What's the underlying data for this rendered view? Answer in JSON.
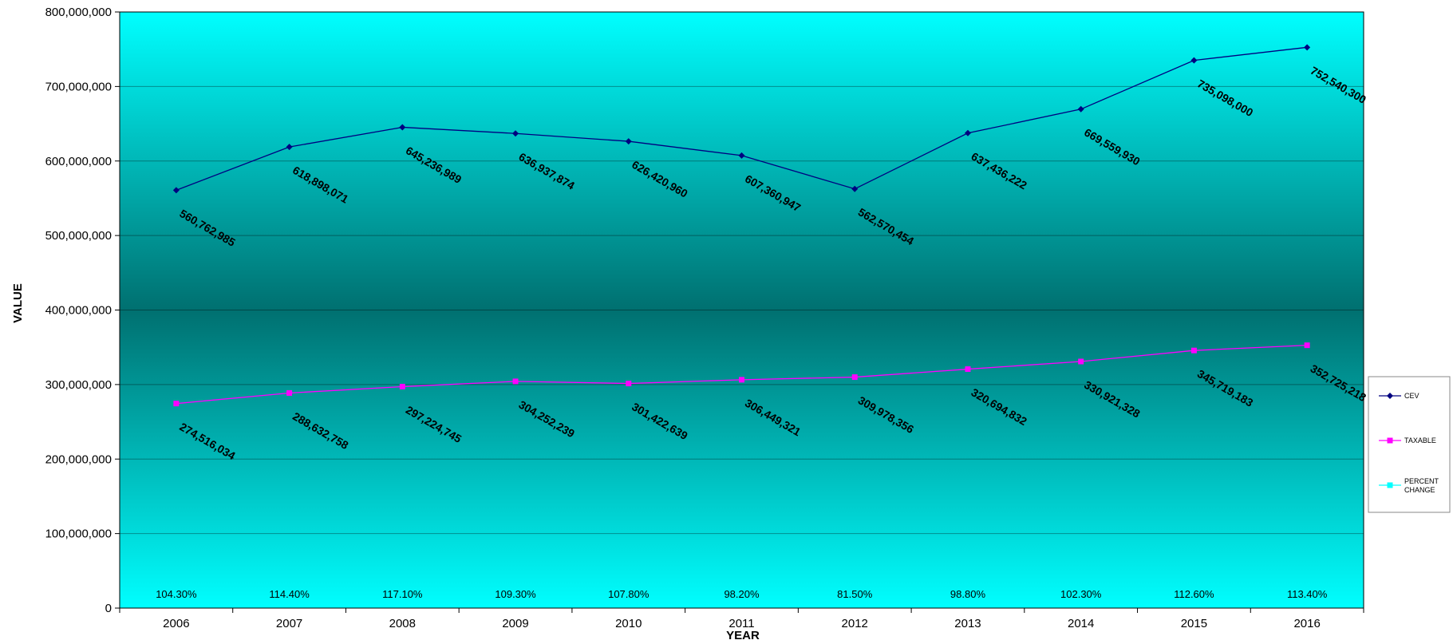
{
  "chart_data": {
    "type": "line",
    "title": "",
    "xlabel": "YEAR",
    "ylabel": "VALUE",
    "ylim": [
      0,
      800000000
    ],
    "yticks": [
      0,
      100000000,
      200000000,
      300000000,
      400000000,
      500000000,
      600000000,
      700000000,
      800000000
    ],
    "ytick_labels": [
      "0",
      "100,000,000",
      "200,000,000",
      "300,000,000",
      "400,000,000",
      "500,000,000",
      "600,000,000",
      "700,000,000",
      "800,000,000"
    ],
    "grid": true,
    "legend_position": "right",
    "categories": [
      "2006",
      "2007",
      "2008",
      "2009",
      "2010",
      "2011",
      "2012",
      "2013",
      "2014",
      "2015",
      "2016"
    ],
    "series": [
      {
        "name": "CEV",
        "color": "#000080",
        "marker": "diamond",
        "values": [
          560762985,
          618898071,
          645236989,
          636937874,
          626420960,
          607360947,
          562570454,
          637436222,
          669559930,
          735098000,
          752540300
        ],
        "labels": [
          "560,762,985",
          "618,898,071",
          "645,236,989",
          "636,937,874",
          "626,420,960",
          "607,360,947",
          "562,570,454",
          "637,436,222",
          "669,559,930",
          "735,098,000",
          "752,540,300"
        ]
      },
      {
        "name": "TAXABLE",
        "color": "#ff00ff",
        "marker": "square",
        "values": [
          274516034,
          288632758,
          297224745,
          304252239,
          301422639,
          306449321,
          309978356,
          320694832,
          330921328,
          345719183,
          352725218
        ],
        "labels": [
          "274,516,034",
          "288,632,758",
          "297,224,745",
          "304,252,239",
          "301,422,639",
          "306,449,321",
          "309,978,356",
          "320,694,832",
          "330,921,328",
          "345,719,183",
          "352,725,218"
        ]
      },
      {
        "name_lines": [
          "PERCENT",
          "CHANGE"
        ],
        "color": "#00ffff",
        "marker": "square",
        "values": [
          104.3,
          114.4,
          117.1,
          109.3,
          107.8,
          98.2,
          81.5,
          98.8,
          102.3,
          112.6,
          113.4
        ],
        "labels": [
          "104.30%",
          "114.40%",
          "117.10%",
          "109.30%",
          "107.80%",
          "98.20%",
          "81.50%",
          "98.80%",
          "102.30%",
          "112.60%",
          "113.40%"
        ]
      }
    ]
  }
}
